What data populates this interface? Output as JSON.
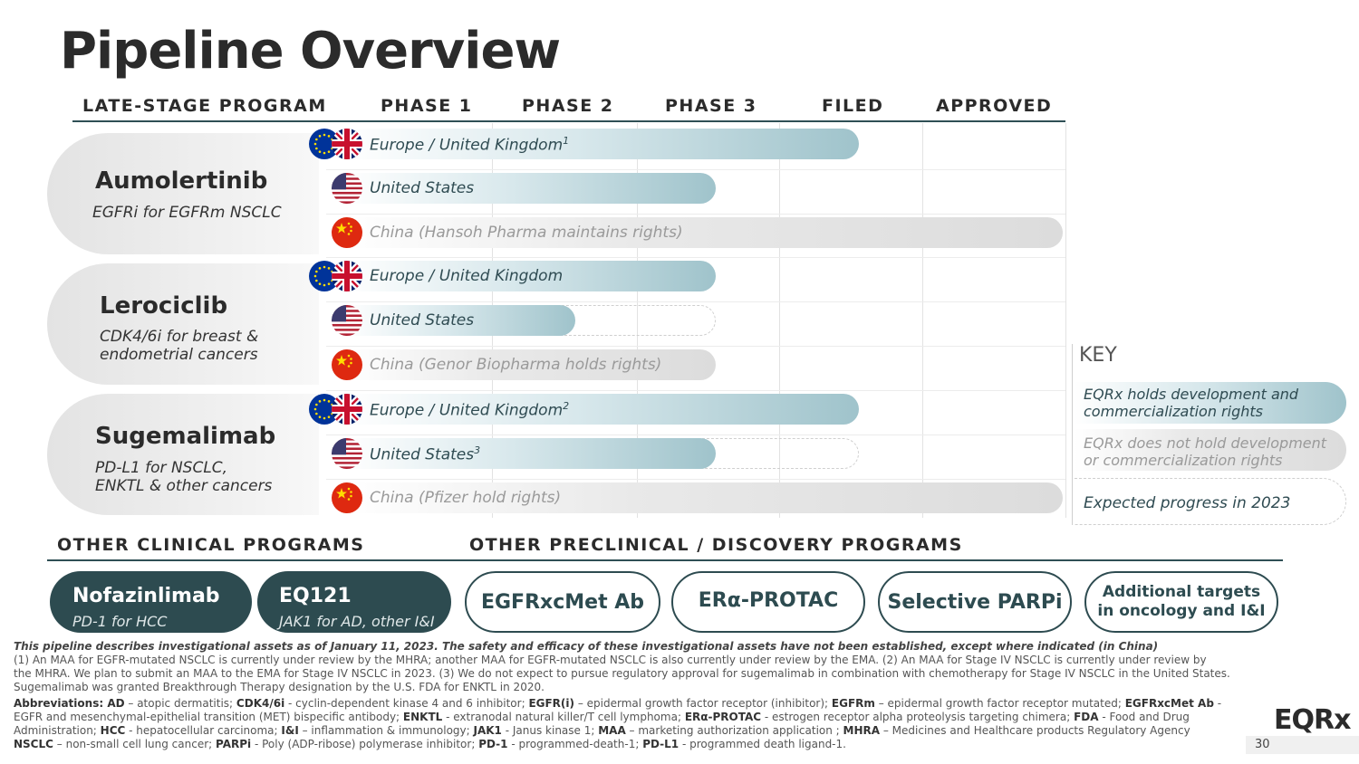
{
  "title": "Pipeline Overview",
  "columns": [
    "LATE-STAGE PROGRAM",
    "PHASE 1",
    "PHASE 2",
    "PHASE 3",
    "FILED",
    "APPROVED"
  ],
  "programs": [
    {
      "name": "Aumolertinib",
      "subtitle": "EGFRi for EGFRm NSCLC",
      "rows": [
        {
          "flag": "eu-uk-flag-icon",
          "label": "Europe / United Kingdom",
          "sup": "1",
          "status": "eqrx",
          "progress_stage": "Filed",
          "expected_stage": ""
        },
        {
          "flag": "us-flag-icon",
          "label": "United States",
          "sup": "",
          "status": "eqrx",
          "progress_stage": "Phase 3",
          "expected_stage": ""
        },
        {
          "flag": "china-flag-icon",
          "label": "China (Hansoh Pharma maintains rights)",
          "sup": "",
          "status": "partner",
          "progress_stage": "Approved",
          "expected_stage": ""
        }
      ]
    },
    {
      "name": "Lerociclib",
      "subtitle_lines": [
        "CDK4/6i for breast &",
        "endometrial cancers"
      ],
      "rows": [
        {
          "flag": "eu-uk-flag-icon",
          "label": "Europe / United Kingdom",
          "sup": "",
          "status": "eqrx",
          "progress_stage": "Phase 3",
          "expected_stage": ""
        },
        {
          "flag": "us-flag-icon",
          "label": "United States",
          "sup": "",
          "status": "eqrx",
          "progress_stage": "Phase 2",
          "expected_stage": "Phase 3"
        },
        {
          "flag": "china-flag-icon",
          "label": "China (Genor Biopharma holds rights)",
          "sup": "",
          "status": "partner",
          "progress_stage": "Phase 3",
          "expected_stage": ""
        }
      ]
    },
    {
      "name": "Sugemalimab",
      "subtitle_lines": [
        "PD-L1 for NSCLC,",
        "ENKTL & other cancers"
      ],
      "rows": [
        {
          "flag": "eu-uk-flag-icon",
          "label": "Europe / United Kingdom",
          "sup": "2",
          "status": "eqrx",
          "progress_stage": "Filed",
          "expected_stage": ""
        },
        {
          "flag": "us-flag-icon",
          "label": "United States",
          "sup": "3",
          "status": "eqrx",
          "progress_stage": "Phase 3",
          "expected_stage": "Filed"
        },
        {
          "flag": "china-flag-icon",
          "label": "China (Pfizer hold rights)",
          "sup": "",
          "status": "partner",
          "progress_stage": "Approved",
          "expected_stage": ""
        }
      ]
    }
  ],
  "key": {
    "title": "KEY",
    "items": [
      {
        "lines": [
          "EQRx holds development and",
          "commercialization rights"
        ]
      },
      {
        "lines": [
          "EQRx does not hold development",
          "or commercialization rights"
        ]
      },
      {
        "lines": [
          "Expected progress in 2023"
        ]
      }
    ]
  },
  "other_clinical": {
    "header": "OTHER CLINICAL PROGRAMS",
    "items": [
      {
        "name": "Nofazinlimab",
        "subtitle": "PD-1 for HCC"
      },
      {
        "name": "EQ121",
        "subtitle": "JAK1 for AD, other I&I"
      }
    ]
  },
  "preclinical": {
    "header": "OTHER PRECLINICAL / DISCOVERY PROGRAMS",
    "items": [
      {
        "lines": [
          "EGFRxcMet Ab"
        ]
      },
      {
        "lines": [
          "ERα-PROTAC"
        ]
      },
      {
        "lines": [
          "Selective PARPi"
        ]
      },
      {
        "lines": [
          "Additional targets",
          "in oncology and I&I"
        ]
      }
    ]
  },
  "footnote": {
    "disclaimer": "This pipeline describes investigational assets as of January 11, 2023. The safety and efficacy of these investigational assets have not been established, except where indicated (in China)",
    "notes": [
      "(1) An MAA for EGFR-mutated NSCLC is currently under review by the MHRA; another MAA for EGFR-mutated NSCLC is also currently under review by the EMA. (2) An MAA for Stage IV NSCLC is currently under review by",
      "the MHRA. We plan to submit an MAA to the EMA for Stage IV NSCLC in 2023. (3) We do not expect to pursue regulatory approval for sugemalimab in combination with chemotherapy for Stage IV NSCLC in the United States.",
      "Sugemalimab was granted Breakthrough Therapy designation by the U.S. FDA for ENKTL in 2020."
    ],
    "abbreviations": [
      [
        {
          "b": "Abbreviations: AD"
        },
        {
          "t": " – atopic dermatitis; "
        },
        {
          "b": "CDK4/6i"
        },
        {
          "t": " - cyclin-dependent kinase 4 and 6 inhibitor; "
        },
        {
          "b": "EGFR(i)"
        },
        {
          "t": " – epidermal growth factor receptor (inhibitor); "
        },
        {
          "b": "EGFRm"
        },
        {
          "t": " – epidermal growth factor receptor mutated; "
        },
        {
          "b": "EGFRxcMet Ab"
        },
        {
          "t": " -"
        }
      ],
      [
        {
          "t": "EGFR and mesenchymal-epithelial transition (MET) bispecific antibody; "
        },
        {
          "b": "ENKTL"
        },
        {
          "t": " - extranodal natural killer/T cell lymphoma; "
        },
        {
          "b": "ERα-PROTAC"
        },
        {
          "t": " - estrogen receptor alpha proteolysis targeting chimera; "
        },
        {
          "b": "FDA"
        },
        {
          "t": " - Food and Drug"
        }
      ],
      [
        {
          "t": "Administration; "
        },
        {
          "b": "HCC"
        },
        {
          "t": " - hepatocellular carcinoma; "
        },
        {
          "b": "I&I"
        },
        {
          "t": " – inflammation & immunology; "
        },
        {
          "b": "JAK1"
        },
        {
          "t": " - Janus kinase 1; "
        },
        {
          "b": "MAA"
        },
        {
          "t": " – marketing authorization application ; "
        },
        {
          "b": "MHRA"
        },
        {
          "t": " – Medicines and Healthcare products Regulatory Agency"
        }
      ],
      [
        {
          "b": "NSCLC"
        },
        {
          "t": " – non-small cell lung cancer; "
        },
        {
          "b": "PARPi"
        },
        {
          "t": " - Poly (ADP-ribose) polymerase inhibitor; "
        },
        {
          "b": "PD-1"
        },
        {
          "t": " - programmed-death-1; "
        },
        {
          "b": "PD-L1"
        },
        {
          "t": " - programmed death ligand-1."
        }
      ]
    ]
  },
  "logo": "EQRx",
  "page_number": "30",
  "colors": {
    "accent": "#2d4b50",
    "eqrx_bar": "#9fc3cb",
    "partner_bar": "#dcdcdc"
  }
}
